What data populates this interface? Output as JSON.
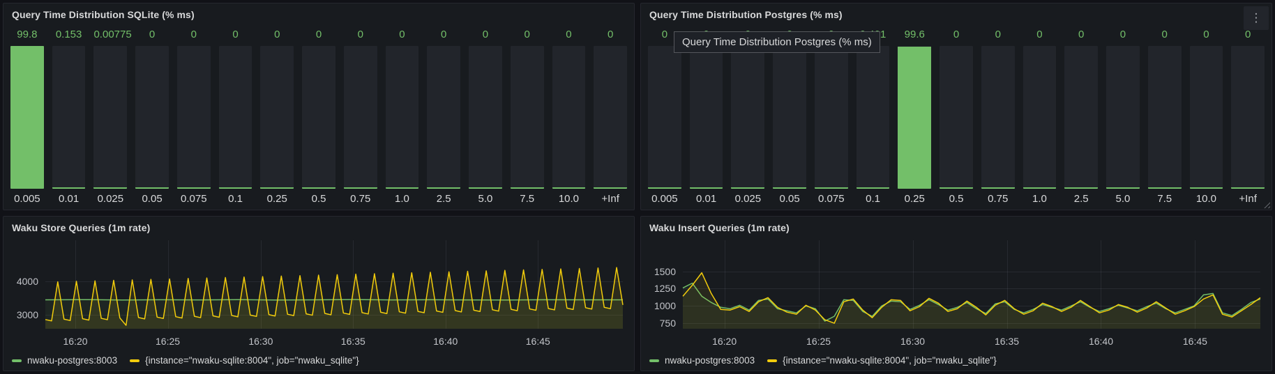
{
  "theme": {
    "page_bg": "#111217",
    "panel_bg": "#181B1F",
    "panel_border": "#25272E",
    "green": "#73BF69",
    "yellow": "#F2CC0C",
    "title_color": "#D8D9DA",
    "tick_color": "#C2C4C9",
    "bar_track": "#22252B"
  },
  "panels": [
    {
      "id": "sqlite-hist",
      "title": "Query Time Distribution SQLite (% ms)"
    },
    {
      "id": "postgres-hist",
      "title": "Query Time Distribution Postgres (% ms)",
      "tooltip": "Query Time Distribution Postgres (% ms)",
      "menu_icon": "kebab-menu",
      "kebab_glyph": "⋮"
    },
    {
      "id": "store-queries",
      "title": "Waku Store Queries (1m rate)"
    },
    {
      "id": "insert-queries",
      "title": "Waku Insert Queries (1m rate)"
    }
  ],
  "chart_data": [
    {
      "panel": "sqlite-hist",
      "type": "bar",
      "title": "Query Time Distribution SQLite (% ms)",
      "categories": [
        "0.005",
        "0.01",
        "0.025",
        "0.05",
        "0.075",
        "0.1",
        "0.25",
        "0.5",
        "0.75",
        "1.0",
        "2.5",
        "5.0",
        "7.5",
        "10.0",
        "+Inf"
      ],
      "values": [
        99.8,
        0.153,
        0.00775,
        0,
        0,
        0,
        0,
        0,
        0,
        0,
        0,
        0,
        0,
        0,
        0
      ],
      "ylim": [
        0,
        100
      ],
      "bar_color": "#73BF69"
    },
    {
      "panel": "postgres-hist",
      "type": "bar",
      "title": "Query Time Distribution Postgres (% ms)",
      "categories": [
        "0.005",
        "0.01",
        "0.025",
        "0.05",
        "0.075",
        "0.1",
        "0.25",
        "0.5",
        "0.75",
        "1.0",
        "2.5",
        "5.0",
        "7.5",
        "10.0",
        "+Inf"
      ],
      "values": [
        0,
        0,
        0,
        0,
        0,
        0.401,
        99.6,
        0,
        0,
        0,
        0,
        0,
        0,
        0,
        0
      ],
      "ylim": [
        0,
        100
      ],
      "bar_color": "#73BF69"
    },
    {
      "panel": "store-queries",
      "type": "line",
      "title": "Waku Store Queries (1m rate)",
      "ylim": [
        2600,
        5200
      ],
      "y_ticks": [
        3000,
        4000
      ],
      "x_ticks": [
        {
          "label": "16:20",
          "pos": 0.052
        },
        {
          "label": "16:25",
          "pos": 0.212
        },
        {
          "label": "16:30",
          "pos": 0.373
        },
        {
          "label": "16:35",
          "pos": 0.533
        },
        {
          "label": "16:40",
          "pos": 0.693
        },
        {
          "label": "16:45",
          "pos": 0.853
        }
      ],
      "series": [
        {
          "name": "nwaku-postgres:8003",
          "color": "#73BF69",
          "width": 1.5,
          "fill_opacity": 0.07,
          "values": [
            3450,
            3456,
            3444,
            3452,
            3447,
            3455,
            3445,
            3450,
            3458,
            3446,
            3452,
            3448,
            3444,
            3453,
            3449,
            3451
          ]
        },
        {
          "name": "{instance=\"nwaku-sqlite:8004\", job=\"nwaku_sqlite\"}",
          "color": "#F2CC0C",
          "width": 1.5,
          "fill_opacity": 0.1,
          "values": [
            2870,
            2830,
            3980,
            2882,
            2842,
            3994,
            2894,
            2854,
            4008,
            2906,
            2866,
            4022,
            2918,
            2700,
            4036,
            2930,
            2890,
            4050,
            2942,
            2902,
            4064,
            2954,
            2914,
            4078,
            2966,
            2926,
            4092,
            2978,
            2938,
            4106,
            2990,
            2950,
            4120,
            3002,
            2962,
            4134,
            3014,
            2974,
            4148,
            3026,
            2986,
            4162,
            3038,
            2998,
            4176,
            3050,
            3010,
            4190,
            3062,
            3022,
            4204,
            3074,
            3034,
            4218,
            3086,
            3046,
            4232,
            3098,
            3058,
            4246,
            3110,
            3070,
            4260,
            3122,
            3082,
            4274,
            3134,
            3094,
            4288,
            3146,
            3106,
            4302,
            3158,
            3118,
            4316,
            3170,
            3130,
            4330,
            3182,
            3142,
            4344,
            3194,
            3154,
            4358,
            3206,
            3166,
            4372,
            3218,
            3178,
            4386,
            3230,
            3190,
            4400,
            3300
          ]
        }
      ]
    },
    {
      "panel": "insert-queries",
      "type": "line",
      "title": "Waku Insert Queries (1m rate)",
      "ylim": [
        670,
        1950
      ],
      "y_ticks": [
        750,
        1000,
        1250,
        1500
      ],
      "x_ticks": [
        {
          "label": "16:20",
          "pos": 0.072
        },
        {
          "label": "16:25",
          "pos": 0.235
        },
        {
          "label": "16:30",
          "pos": 0.398
        },
        {
          "label": "16:35",
          "pos": 0.561
        },
        {
          "label": "16:40",
          "pos": 0.724
        },
        {
          "label": "16:45",
          "pos": 0.887
        }
      ],
      "series": [
        {
          "name": "nwaku-postgres:8003",
          "color": "#73BF69",
          "width": 1.5,
          "fill_opacity": 0.06,
          "values": [
            1260,
            1330,
            1140,
            1050,
            980,
            960,
            1010,
            940,
            1080,
            1100,
            960,
            930,
            900,
            1000,
            960,
            780,
            850,
            1090,
            1080,
            920,
            850,
            1000,
            1070,
            1060,
            950,
            1010,
            1090,
            1020,
            940,
            980,
            1050,
            960,
            890,
            1030,
            1060,
            950,
            900,
            950,
            1020,
            980,
            940,
            1000,
            1060,
            980,
            920,
            960,
            1010,
            970,
            930,
            990,
            1040,
            960,
            900,
            950,
            1000,
            1160,
            1180,
            900,
            860,
            950,
            1050,
            1100
          ]
        },
        {
          "name": "{instance=\"nwaku-sqlite:8004\", job=\"nwaku_sqlite\"}",
          "color": "#F2CC0C",
          "width": 1.5,
          "fill_opacity": 0.08,
          "values": [
            1140,
            1300,
            1480,
            1180,
            950,
            940,
            990,
            920,
            1060,
            1120,
            980,
            910,
            880,
            1010,
            940,
            800,
            750,
            1060,
            1100,
            940,
            830,
            980,
            1090,
            1080,
            930,
            990,
            1110,
            1040,
            920,
            960,
            1070,
            980,
            870,
            1010,
            1080,
            960,
            880,
            930,
            1040,
            990,
            920,
            980,
            1080,
            990,
            900,
            940,
            1020,
            980,
            910,
            970,
            1060,
            970,
            880,
            930,
            990,
            1100,
            1160,
            880,
            840,
            930,
            1020,
            1120
          ]
        }
      ]
    }
  ]
}
